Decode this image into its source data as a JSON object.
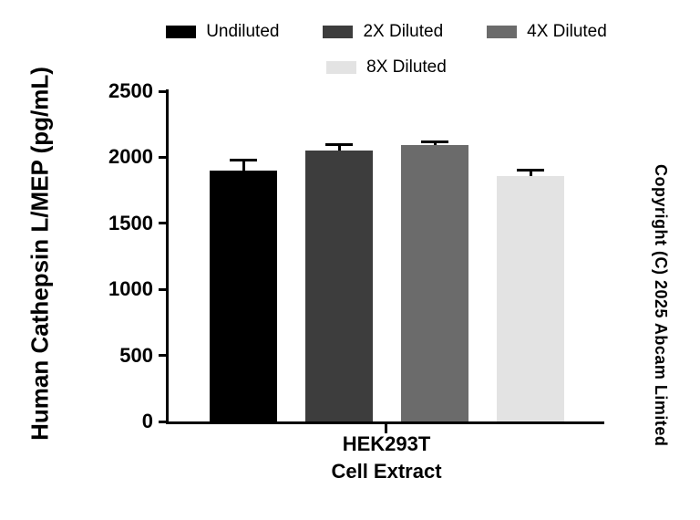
{
  "chart_data": {
    "type": "bar",
    "title": "",
    "ylabel": "Human Cathepsin L/MEP (pg/mL)",
    "xlabel_lines": [
      "HEK293T",
      "Cell Extract"
    ],
    "ylim": [
      0,
      2500
    ],
    "yticks": [
      0,
      500,
      1000,
      1500,
      2000,
      2500
    ],
    "categories": [
      "Undiluted",
      "2X Diluted",
      "4X Diluted",
      "8X Diluted"
    ],
    "values": [
      1900,
      2050,
      2090,
      1860
    ],
    "errors": [
      90,
      55,
      35,
      55
    ],
    "colors": [
      "#000000",
      "#3d3d3d",
      "#6b6b6b",
      "#e3e3e3"
    ],
    "grid": false,
    "legend_position": "top"
  },
  "legend": {
    "rows": [
      [
        0,
        1,
        2
      ],
      [
        3
      ]
    ]
  },
  "copyright": "Copyright (C) 2025 Abcam Limited"
}
